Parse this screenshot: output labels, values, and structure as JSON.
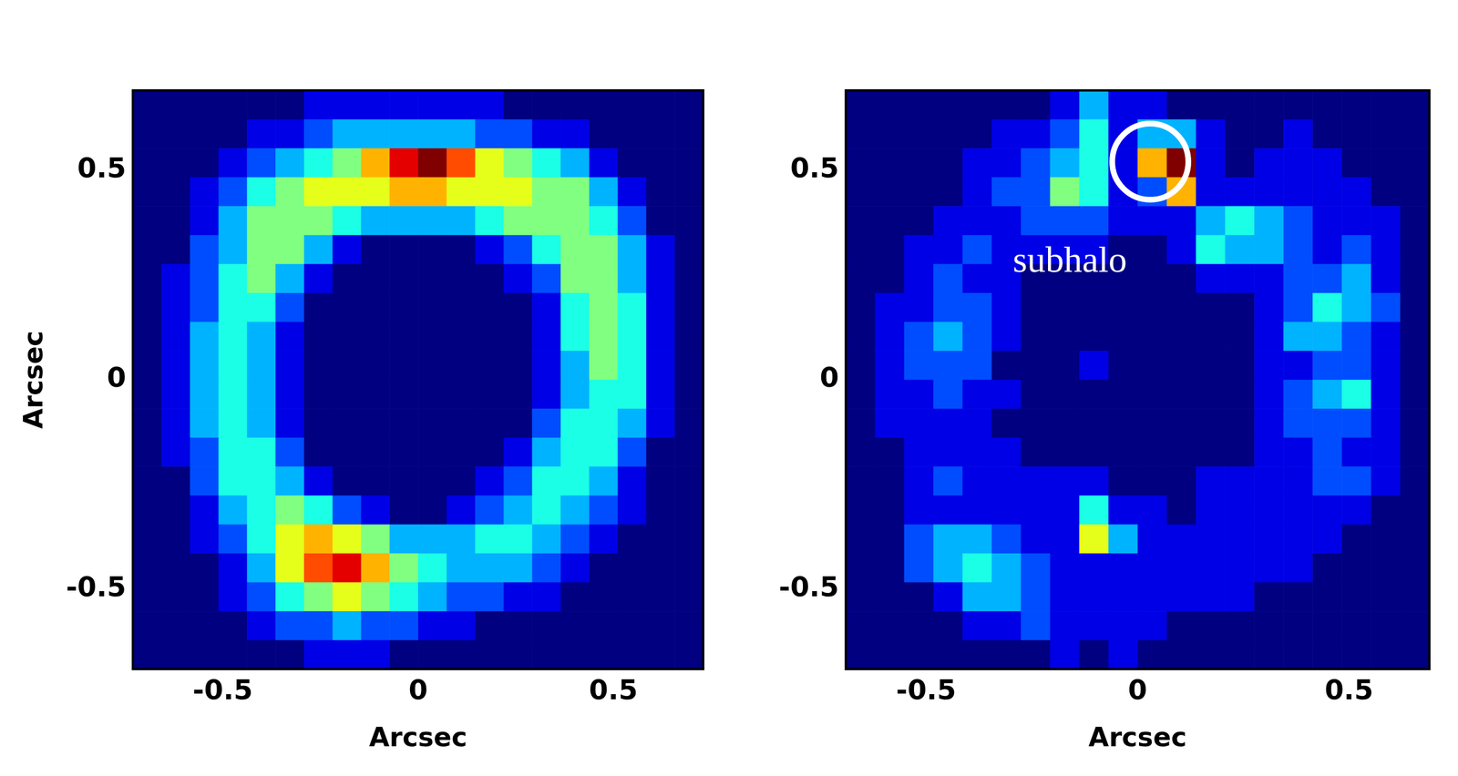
{
  "chart_data": [
    {
      "type": "heatmap",
      "x_label": "Arcsec",
      "y_label": "Arcsec",
      "xlim": [
        -0.73,
        0.73
      ],
      "ylim": [
        -0.69,
        0.69
      ],
      "xticks": [
        -0.5,
        0,
        0.5
      ],
      "yticks": [
        -0.5,
        0,
        0.5
      ],
      "grid": false,
      "zlim": [
        0,
        10
      ],
      "cells": [
        [
          0,
          0,
          0,
          0,
          0,
          0,
          1,
          1,
          1,
          1,
          1,
          1,
          1,
          0,
          0,
          0,
          0,
          0,
          0,
          0
        ],
        [
          0,
          0,
          0,
          0,
          1,
          1,
          2,
          3,
          3,
          3,
          3,
          3,
          2,
          2,
          1,
          1,
          0,
          0,
          0,
          0
        ],
        [
          0,
          0,
          0,
          1,
          2,
          3,
          4,
          5,
          7,
          9,
          10,
          8,
          6,
          5,
          4,
          3,
          1,
          0,
          0,
          0
        ],
        [
          0,
          0,
          1,
          2,
          4,
          5,
          6,
          6,
          6,
          7,
          7,
          6,
          6,
          6,
          5,
          5,
          3,
          1,
          0,
          0
        ],
        [
          0,
          0,
          1,
          3,
          5,
          5,
          5,
          4,
          3,
          3,
          3,
          3,
          4,
          5,
          5,
          5,
          4,
          2,
          0,
          0
        ],
        [
          0,
          0,
          2,
          3,
          5,
          5,
          3,
          1,
          0,
          0,
          0,
          0,
          1,
          2,
          4,
          5,
          5,
          3,
          1,
          0
        ],
        [
          0,
          1,
          2,
          4,
          5,
          3,
          1,
          0,
          0,
          0,
          0,
          0,
          0,
          1,
          2,
          5,
          5,
          3,
          1,
          0
        ],
        [
          0,
          1,
          2,
          4,
          4,
          2,
          0,
          0,
          0,
          0,
          0,
          0,
          0,
          0,
          1,
          4,
          5,
          4,
          1,
          0
        ],
        [
          0,
          1,
          3,
          4,
          3,
          1,
          0,
          0,
          0,
          0,
          0,
          0,
          0,
          0,
          1,
          4,
          5,
          4,
          1,
          0
        ],
        [
          0,
          1,
          3,
          4,
          3,
          1,
          0,
          0,
          0,
          0,
          0,
          0,
          0,
          0,
          1,
          3,
          5,
          4,
          1,
          0
        ],
        [
          0,
          1,
          3,
          4,
          3,
          1,
          0,
          0,
          0,
          0,
          0,
          0,
          0,
          0,
          1,
          3,
          4,
          4,
          1,
          0
        ],
        [
          0,
          1,
          3,
          4,
          3,
          1,
          0,
          0,
          0,
          0,
          0,
          0,
          0,
          0,
          2,
          4,
          4,
          3,
          1,
          0
        ],
        [
          0,
          1,
          2,
          4,
          4,
          2,
          0,
          0,
          0,
          0,
          0,
          0,
          0,
          1,
          3,
          4,
          4,
          2,
          0,
          0
        ],
        [
          0,
          0,
          2,
          4,
          4,
          3,
          1,
          0,
          0,
          0,
          0,
          0,
          1,
          2,
          4,
          4,
          3,
          1,
          0,
          0
        ],
        [
          0,
          0,
          1,
          3,
          4,
          5,
          4,
          2,
          1,
          0,
          0,
          1,
          2,
          3,
          4,
          3,
          2,
          1,
          0,
          0
        ],
        [
          0,
          0,
          1,
          2,
          4,
          6,
          7,
          6,
          5,
          3,
          3,
          3,
          4,
          4,
          3,
          2,
          1,
          0,
          0,
          0
        ],
        [
          0,
          0,
          0,
          1,
          3,
          6,
          8,
          9,
          7,
          5,
          4,
          3,
          3,
          3,
          2,
          1,
          0,
          0,
          0,
          0
        ],
        [
          0,
          0,
          0,
          1,
          2,
          4,
          5,
          6,
          5,
          4,
          3,
          2,
          2,
          1,
          1,
          0,
          0,
          0,
          0,
          0
        ],
        [
          0,
          0,
          0,
          0,
          1,
          2,
          2,
          3,
          2,
          2,
          1,
          1,
          0,
          0,
          0,
          0,
          0,
          0,
          0,
          0
        ],
        [
          0,
          0,
          0,
          0,
          0,
          0,
          1,
          1,
          1,
          0,
          0,
          0,
          0,
          0,
          0,
          0,
          0,
          0,
          0,
          0
        ]
      ]
    },
    {
      "type": "heatmap",
      "x_label": "Arcsec",
      "xlim": [
        -0.69,
        0.69
      ],
      "ylim": [
        -0.69,
        0.69
      ],
      "xticks": [
        -0.5,
        0,
        0.5
      ],
      "yticks": [
        -0.5,
        0,
        0.5
      ],
      "grid": false,
      "zlim": [
        0,
        10
      ],
      "annotations": [
        {
          "text": "subhalo",
          "x": -0.16,
          "y": 0.28
        }
      ],
      "circle": {
        "x": 0.03,
        "y": 0.52,
        "radius": 0.09
      },
      "cells": [
        [
          0,
          0,
          0,
          0,
          0,
          0,
          0,
          1,
          3,
          1,
          1,
          0,
          0,
          0,
          0,
          0,
          0,
          0,
          0,
          0
        ],
        [
          0,
          0,
          0,
          0,
          0,
          1,
          1,
          2,
          4,
          1,
          3,
          3,
          1,
          0,
          0,
          1,
          0,
          0,
          0,
          0
        ],
        [
          0,
          0,
          0,
          0,
          1,
          1,
          2,
          3,
          4,
          1,
          7,
          10,
          1,
          0,
          1,
          1,
          1,
          0,
          0,
          0
        ],
        [
          0,
          0,
          0,
          0,
          1,
          2,
          2,
          5,
          4,
          1,
          2,
          7,
          1,
          1,
          1,
          1,
          1,
          1,
          0,
          0
        ],
        [
          0,
          0,
          0,
          1,
          1,
          1,
          2,
          2,
          2,
          1,
          1,
          1,
          3,
          4,
          3,
          2,
          1,
          1,
          1,
          0
        ],
        [
          0,
          0,
          1,
          1,
          2,
          1,
          1,
          1,
          1,
          0,
          0,
          1,
          4,
          3,
          3,
          2,
          1,
          2,
          1,
          0
        ],
        [
          0,
          0,
          1,
          2,
          1,
          1,
          0,
          0,
          0,
          0,
          0,
          0,
          1,
          1,
          1,
          2,
          2,
          3,
          1,
          0
        ],
        [
          0,
          1,
          1,
          2,
          2,
          1,
          0,
          0,
          0,
          0,
          0,
          0,
          0,
          0,
          1,
          2,
          4,
          3,
          2,
          0
        ],
        [
          0,
          1,
          2,
          3,
          2,
          1,
          0,
          0,
          0,
          0,
          0,
          0,
          0,
          0,
          1,
          3,
          3,
          2,
          1,
          0
        ],
        [
          0,
          1,
          2,
          2,
          2,
          0,
          0,
          0,
          1,
          0,
          0,
          0,
          0,
          0,
          1,
          1,
          2,
          2,
          1,
          0
        ],
        [
          0,
          1,
          1,
          2,
          1,
          1,
          0,
          0,
          0,
          0,
          0,
          0,
          0,
          0,
          1,
          2,
          3,
          4,
          1,
          0
        ],
        [
          0,
          1,
          1,
          1,
          1,
          0,
          0,
          0,
          0,
          0,
          0,
          0,
          0,
          0,
          1,
          2,
          2,
          2,
          1,
          0
        ],
        [
          0,
          0,
          1,
          1,
          1,
          1,
          0,
          0,
          0,
          0,
          0,
          0,
          0,
          0,
          1,
          1,
          2,
          1,
          1,
          0
        ],
        [
          0,
          0,
          1,
          2,
          1,
          1,
          1,
          1,
          1,
          0,
          0,
          0,
          1,
          1,
          1,
          1,
          2,
          2,
          1,
          0
        ],
        [
          0,
          0,
          1,
          1,
          1,
          1,
          1,
          1,
          4,
          1,
          1,
          0,
          1,
          1,
          1,
          1,
          1,
          1,
          0,
          0
        ],
        [
          0,
          0,
          2,
          3,
          3,
          2,
          1,
          1,
          6,
          3,
          1,
          1,
          1,
          1,
          1,
          1,
          1,
          0,
          0,
          0
        ],
        [
          0,
          0,
          2,
          3,
          4,
          3,
          2,
          1,
          1,
          1,
          1,
          1,
          1,
          1,
          1,
          1,
          0,
          0,
          0,
          0
        ],
        [
          0,
          0,
          0,
          1,
          3,
          3,
          2,
          1,
          1,
          1,
          1,
          1,
          1,
          1,
          0,
          0,
          0,
          0,
          0,
          0
        ],
        [
          0,
          0,
          0,
          0,
          1,
          1,
          2,
          1,
          1,
          1,
          1,
          0,
          0,
          0,
          0,
          0,
          0,
          0,
          0,
          0
        ],
        [
          0,
          0,
          0,
          0,
          0,
          0,
          0,
          1,
          0,
          1,
          0,
          0,
          0,
          0,
          0,
          0,
          0,
          0,
          0,
          0
        ]
      ]
    }
  ]
}
